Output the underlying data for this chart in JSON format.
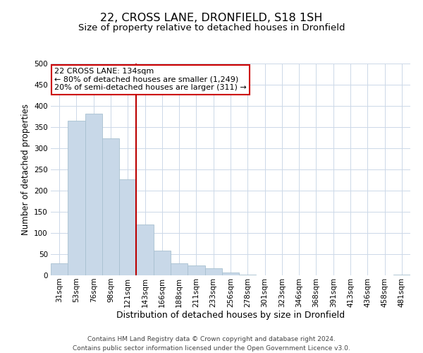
{
  "title": "22, CROSS LANE, DRONFIELD, S18 1SH",
  "subtitle": "Size of property relative to detached houses in Dronfield",
  "xlabel": "Distribution of detached houses by size in Dronfield",
  "ylabel": "Number of detached properties",
  "bar_labels": [
    "31sqm",
    "53sqm",
    "76sqm",
    "98sqm",
    "121sqm",
    "143sqm",
    "166sqm",
    "188sqm",
    "211sqm",
    "233sqm",
    "256sqm",
    "278sqm",
    "301sqm",
    "323sqm",
    "346sqm",
    "368sqm",
    "391sqm",
    "413sqm",
    "436sqm",
    "458sqm",
    "481sqm"
  ],
  "bar_values": [
    28,
    365,
    382,
    323,
    226,
    120,
    58,
    28,
    23,
    17,
    6,
    1,
    0,
    0,
    0,
    0,
    0,
    0,
    0,
    0,
    2
  ],
  "bar_color": "#c8d8e8",
  "bar_edge_color": "#a8c0d0",
  "vline_x_index": 5,
  "vline_color": "#bb0000",
  "annotation_title": "22 CROSS LANE: 134sqm",
  "annotation_line1": "← 80% of detached houses are smaller (1,249)",
  "annotation_line2": "20% of semi-detached houses are larger (311) →",
  "annotation_box_color": "#ffffff",
  "annotation_box_edge": "#cc0000",
  "ylim": [
    0,
    500
  ],
  "footer1": "Contains HM Land Registry data © Crown copyright and database right 2024.",
  "footer2": "Contains public sector information licensed under the Open Government Licence v3.0.",
  "background_color": "#ffffff",
  "grid_color": "#ccd8e8",
  "title_fontsize": 11.5,
  "subtitle_fontsize": 9.5,
  "xlabel_fontsize": 9,
  "ylabel_fontsize": 8.5,
  "tick_fontsize": 7.5,
  "annotation_fontsize": 8,
  "footer_fontsize": 6.5
}
